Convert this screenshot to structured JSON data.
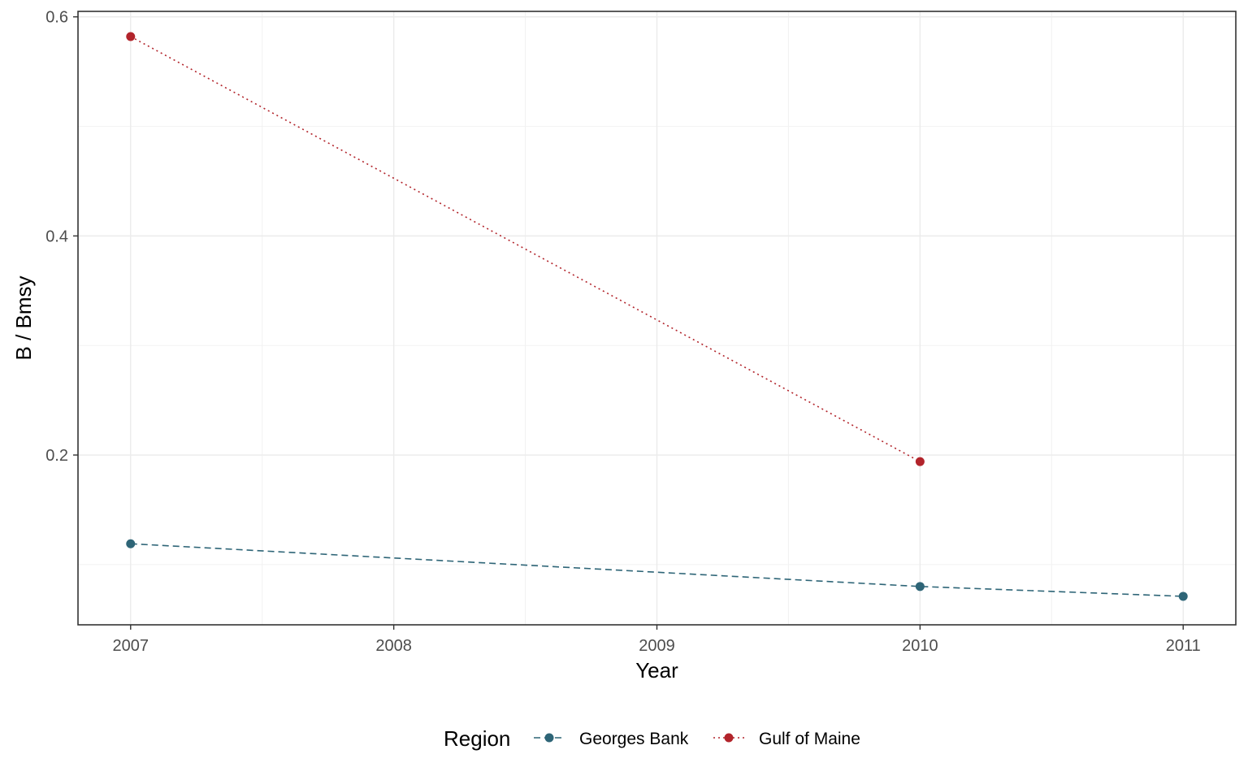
{
  "chart_data": {
    "type": "line",
    "x": [
      2007,
      2008,
      2009,
      2010,
      2011
    ],
    "x_tick_labels": [
      "2007",
      "2008",
      "2009",
      "2010",
      "2011"
    ],
    "y_ticks": [
      0.2,
      0.4,
      0.6
    ],
    "y_tick_labels": [
      "0.2",
      "0.4",
      "0.6"
    ],
    "xlim": [
      2006.8,
      2011.2
    ],
    "ylim": [
      0.045,
      0.605
    ],
    "xlabel": "Year",
    "ylabel": "B / Bmsy",
    "legend": {
      "title": "Region",
      "placement": "bottom"
    },
    "grid": true,
    "series": [
      {
        "name": "Georges Bank",
        "color": "#2e6577",
        "linestyle": "dashed",
        "points": [
          {
            "x": 2007,
            "y": 0.119
          },
          {
            "x": 2010,
            "y": 0.08
          },
          {
            "x": 2011,
            "y": 0.071
          }
        ]
      },
      {
        "name": "Gulf of Maine",
        "color": "#b2242b",
        "linestyle": "dotted",
        "points": [
          {
            "x": 2007,
            "y": 0.582
          },
          {
            "x": 2010,
            "y": 0.194
          }
        ]
      }
    ]
  }
}
